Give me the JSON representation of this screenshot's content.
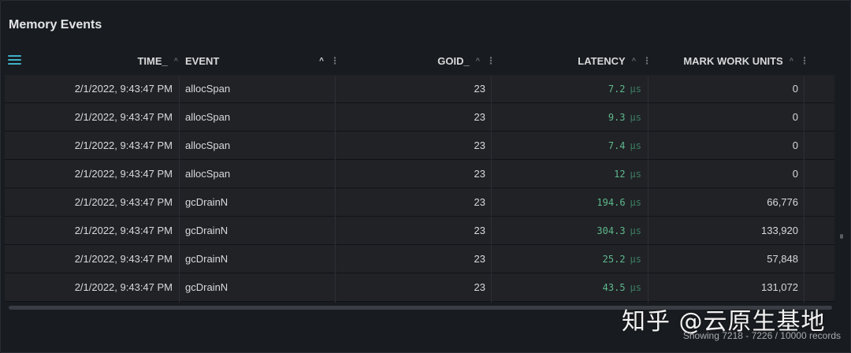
{
  "panel": {
    "title": "Memory Events"
  },
  "table": {
    "columns": [
      {
        "label": "TIME_",
        "sort": "^"
      },
      {
        "label": "EVENT",
        "sort": "^"
      },
      {
        "label": "GOID_",
        "sort": "^"
      },
      {
        "label": "LATENCY",
        "sort": "^"
      },
      {
        "label": "MARK WORK UNITS",
        "sort": "^"
      }
    ],
    "kebab": "⋮",
    "latency_unit": "μs",
    "rows": [
      {
        "time": "2/1/2022, 9:43:47 PM",
        "event": "allocSpan",
        "goid": "23",
        "latency": "7.2",
        "mark_work_units": "0"
      },
      {
        "time": "2/1/2022, 9:43:47 PM",
        "event": "allocSpan",
        "goid": "23",
        "latency": "9.3",
        "mark_work_units": "0"
      },
      {
        "time": "2/1/2022, 9:43:47 PM",
        "event": "allocSpan",
        "goid": "23",
        "latency": "7.4",
        "mark_work_units": "0"
      },
      {
        "time": "2/1/2022, 9:43:47 PM",
        "event": "allocSpan",
        "goid": "23",
        "latency": "12",
        "mark_work_units": "0"
      },
      {
        "time": "2/1/2022, 9:43:47 PM",
        "event": "gcDrainN",
        "goid": "23",
        "latency": "194.6",
        "mark_work_units": "66,776"
      },
      {
        "time": "2/1/2022, 9:43:47 PM",
        "event": "gcDrainN",
        "goid": "23",
        "latency": "304.3",
        "mark_work_units": "133,920"
      },
      {
        "time": "2/1/2022, 9:43:47 PM",
        "event": "gcDrainN",
        "goid": "23",
        "latency": "25.2",
        "mark_work_units": "57,848"
      },
      {
        "time": "2/1/2022, 9:43:47 PM",
        "event": "gcDrainN",
        "goid": "23",
        "latency": "43.5",
        "mark_work_units": "131,072"
      }
    ]
  },
  "footer": {
    "records_text": "Showing 7218 - 7226 / 10000 records"
  },
  "watermark": {
    "text": "知乎 @云原生基地"
  },
  "colors": {
    "accent": "#3eb1c8",
    "latency_value": "#5fb88c",
    "panel_bg": "#181b1f",
    "row_bg": "#202226"
  },
  "icons": {
    "menu": "hamburger-menu-icon",
    "sort": "sort-ascending-icon",
    "column_menu": "kebab-icon"
  }
}
